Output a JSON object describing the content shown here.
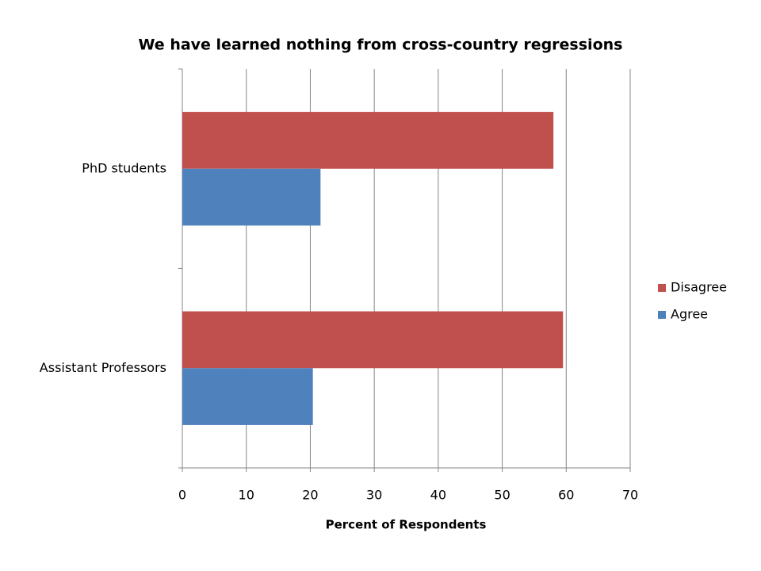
{
  "chart_data": {
    "type": "barh",
    "title": "We have learned nothing from cross-country regressions",
    "x_label": "Percent of Respondents",
    "categories": [
      "PhD students",
      "Assistant Professors"
    ],
    "series": [
      {
        "name": "Disagree",
        "color": "#c0504d",
        "values": [
          58,
          59.5
        ]
      },
      {
        "name": "Agree",
        "color": "#4f81bd",
        "values": [
          21.6,
          20.4
        ]
      }
    ],
    "xlim": [
      0,
      70
    ],
    "xticks": [
      0,
      10,
      20,
      30,
      40,
      50,
      60,
      70
    ],
    "grid": true,
    "legend": "right"
  }
}
